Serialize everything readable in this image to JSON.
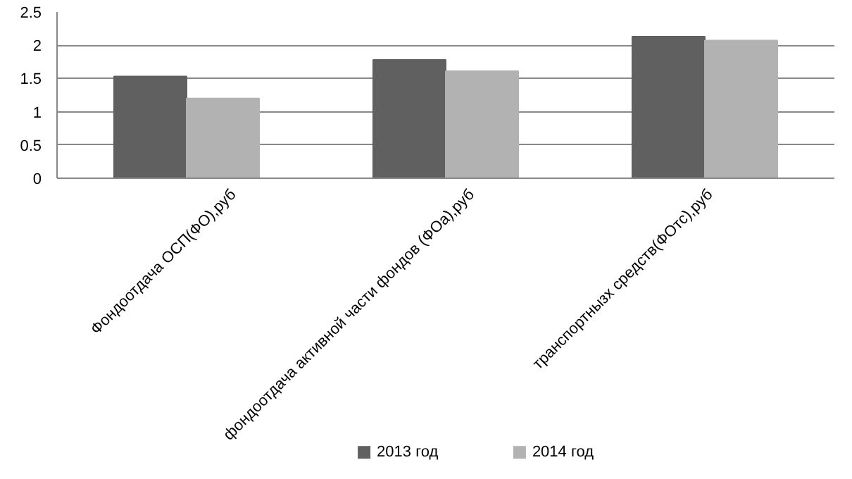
{
  "chart_data": {
    "type": "bar",
    "categories": [
      "Фондоотдача ОСП(ФО),руб",
      "фондоотдача активной части фондов (ФОа),руб",
      "транспортнызх средств(ФОтс),руб"
    ],
    "series": [
      {
        "name": "2013 год",
        "color": "#606060",
        "values": [
          1.53,
          1.78,
          2.13
        ]
      },
      {
        "name": "2014 год",
        "color": "#b2b2b2",
        "values": [
          1.2,
          1.61,
          2.07
        ]
      }
    ],
    "ylim": [
      0,
      2.5
    ],
    "yticks": [
      0,
      0.5,
      1,
      1.5,
      2,
      2.5
    ],
    "grid": "y",
    "legend": "bottom"
  }
}
